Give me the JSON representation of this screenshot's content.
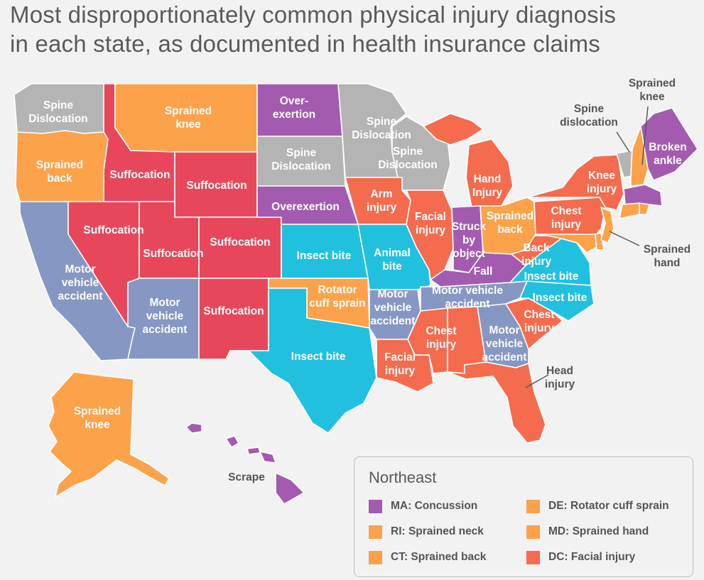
{
  "title": {
    "line1": "Most disproportionately common physical injury diagnosis",
    "line2": "in each state, as documented in health insurance claims"
  },
  "colors": {
    "purple": "#a35bb0",
    "gray": "#b4b4b4",
    "orange": "#fca24a",
    "red": "#e8475b",
    "blue_gray": "#8697c3",
    "coral": "#f46b4e",
    "cyan": "#22c0df",
    "background": "#f2f2f2"
  },
  "states": [
    {
      "state": "WA",
      "diagnosis": "Spine Dislocation",
      "color": "gray"
    },
    {
      "state": "OR",
      "diagnosis": "Sprained back",
      "color": "orange"
    },
    {
      "state": "CA",
      "diagnosis": "Motor vehicle accident",
      "color": "blue_gray"
    },
    {
      "state": "ID",
      "diagnosis": "Suffocation",
      "color": "red"
    },
    {
      "state": "NV",
      "diagnosis": "Suffocation",
      "color": "red"
    },
    {
      "state": "MT",
      "diagnosis": "Sprained knee",
      "color": "orange"
    },
    {
      "state": "WY",
      "diagnosis": "Suffocation",
      "color": "red"
    },
    {
      "state": "UT",
      "diagnosis": "Suffocation",
      "color": "red"
    },
    {
      "state": "CO",
      "diagnosis": "Suffocation",
      "color": "red"
    },
    {
      "state": "AZ",
      "diagnosis": "Motor vehicle accident",
      "color": "blue_gray"
    },
    {
      "state": "NM",
      "diagnosis": "Suffocation",
      "color": "red"
    },
    {
      "state": "ND",
      "diagnosis": "Over-exertion",
      "color": "purple"
    },
    {
      "state": "SD",
      "diagnosis": "Spine Dislocation",
      "color": "gray"
    },
    {
      "state": "NE",
      "diagnosis": "Overexertion",
      "color": "purple"
    },
    {
      "state": "KS",
      "diagnosis": "Insect bite",
      "color": "cyan"
    },
    {
      "state": "OK",
      "diagnosis": "Rotator cuff sprain",
      "color": "orange"
    },
    {
      "state": "TX",
      "diagnosis": "Insect bite",
      "color": "cyan"
    },
    {
      "state": "MN",
      "diagnosis": "Spine Dislocation",
      "color": "gray"
    },
    {
      "state": "IA",
      "diagnosis": "Arm injury",
      "color": "coral"
    },
    {
      "state": "MO",
      "diagnosis": "Animal bite",
      "color": "cyan"
    },
    {
      "state": "AR",
      "diagnosis": "Motor vehicle accident",
      "color": "blue_gray"
    },
    {
      "state": "LA",
      "diagnosis": "Facial injury",
      "color": "coral"
    },
    {
      "state": "WI",
      "diagnosis": "Spine Dislocation",
      "color": "gray"
    },
    {
      "state": "IL",
      "diagnosis": "Facial injury",
      "color": "coral"
    },
    {
      "state": "MI",
      "diagnosis": "Hand Injury",
      "color": "coral"
    },
    {
      "state": "IN",
      "diagnosis": "Struck by object",
      "color": "purple"
    },
    {
      "state": "OH",
      "diagnosis": "Sprained back",
      "color": "orange"
    },
    {
      "state": "KY",
      "diagnosis": "Fall",
      "color": "purple"
    },
    {
      "state": "TN",
      "diagnosis": "Motor vehicle accident",
      "color": "blue_gray"
    },
    {
      "state": "MS",
      "diagnosis": "Chest injury",
      "color": "coral"
    },
    {
      "state": "AL",
      "diagnosis": "Chest injury",
      "color": "coral"
    },
    {
      "state": "GA",
      "diagnosis": "Motor vehicle accident",
      "color": "blue_gray"
    },
    {
      "state": "FL",
      "diagnosis": "Head injury",
      "color": "coral"
    },
    {
      "state": "SC",
      "diagnosis": "Chest injury",
      "color": "coral"
    },
    {
      "state": "NC",
      "diagnosis": "Insect bite",
      "color": "cyan"
    },
    {
      "state": "VA",
      "diagnosis": "Insect bite",
      "color": "cyan"
    },
    {
      "state": "WV",
      "diagnosis": "Back injury",
      "color": "coral"
    },
    {
      "state": "PA",
      "diagnosis": "Chest injury",
      "color": "coral"
    },
    {
      "state": "NY",
      "diagnosis": "Knee injury",
      "color": "coral"
    },
    {
      "state": "VT",
      "diagnosis": "Spine dislocation",
      "color": "gray"
    },
    {
      "state": "NH",
      "diagnosis": "Sprained knee",
      "color": "orange"
    },
    {
      "state": "ME",
      "diagnosis": "Broken ankle",
      "color": "purple"
    },
    {
      "state": "NJ",
      "diagnosis": "Sprained hand",
      "color": "orange"
    },
    {
      "state": "AK",
      "diagnosis": "Sprained knee",
      "color": "orange"
    },
    {
      "state": "HI",
      "diagnosis": "Scrape",
      "color": "purple"
    }
  ],
  "labels": {
    "wa": [
      "Spine",
      "Dislocation"
    ],
    "or": [
      "Sprained",
      "back"
    ],
    "ca": [
      "Motor",
      "vehicle",
      "accident"
    ],
    "id": [
      "Suffocation"
    ],
    "nv": [
      "Suffocation"
    ],
    "mt": [
      "Sprained",
      "knee"
    ],
    "wy": [
      "Suffocation"
    ],
    "ut": [
      "Suffocation"
    ],
    "co": [
      "Suffocation"
    ],
    "az": [
      "Motor",
      "vehicle",
      "accident"
    ],
    "nm": [
      "Suffocation"
    ],
    "nd": [
      "Over-",
      "exertion"
    ],
    "sd": [
      "Spine",
      "Dislocation"
    ],
    "ne": [
      "Overexertion"
    ],
    "ks": [
      "Insect bite"
    ],
    "ok": [
      "Rotator",
      "cuff sprain"
    ],
    "tx": [
      "Insect bite"
    ],
    "mn": [
      "Spine",
      "Dislocation"
    ],
    "wi": [
      "Spine",
      "Dislocation"
    ],
    "ia": [
      "Arm",
      "injury"
    ],
    "mo": [
      "Animal",
      "bite"
    ],
    "ar": [
      "Motor",
      "vehicle",
      "accident"
    ],
    "la": [
      "Facial",
      "injury"
    ],
    "il": [
      "Facial",
      "injury"
    ],
    "mi": [
      "Hand",
      "Injury"
    ],
    "in": [
      "Struck",
      "by",
      "object"
    ],
    "oh": [
      "Sprained",
      "back"
    ],
    "ky": [
      "Fall"
    ],
    "tn": [
      "Motor vehicle",
      "accident"
    ],
    "ms": [
      "Chest",
      "injury"
    ],
    "ga": [
      "Motor",
      "vehicle",
      "accident"
    ],
    "fl": [
      "Head",
      "injury"
    ],
    "sc": [
      "Chest",
      "injury"
    ],
    "nc": [
      "Insect bite"
    ],
    "va": [
      "Insect bite"
    ],
    "wv": [
      "Back",
      "injury"
    ],
    "pa": [
      "Chest",
      "injury"
    ],
    "ny": [
      "Knee",
      "injury"
    ],
    "vt": [
      "Spine",
      "dislocation"
    ],
    "nh": [
      "Sprained",
      "knee"
    ],
    "me": [
      "Broken",
      "ankle"
    ],
    "nj": [
      "Sprained",
      "hand"
    ],
    "ak": [
      "Sprained",
      "knee"
    ],
    "hi": [
      "Scrape"
    ]
  },
  "legend": {
    "title": "Northeast",
    "items": [
      {
        "text": "MA:  Concussion",
        "color": "purple"
      },
      {
        "text": "RI:  Sprained neck",
        "color": "orange"
      },
      {
        "text": "CT:  Sprained back",
        "color": "orange"
      },
      {
        "text": "DE:  Rotator cuff sprain",
        "color": "orange"
      },
      {
        "text": "MD:  Sprained hand",
        "color": "orange"
      },
      {
        "text": "DC:  Facial injury",
        "color": "coral"
      }
    ]
  }
}
